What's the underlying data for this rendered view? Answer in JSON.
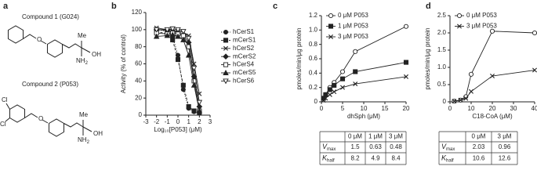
{
  "panel_labels": [
    "a",
    "b",
    "c",
    "d"
  ],
  "structures": [
    {
      "name": "Compound 1 (G024)",
      "labels": [
        "Me",
        "NH",
        "2",
        "OH"
      ]
    },
    {
      "name": "Compound 2 (P053)",
      "labels": [
        "Cl",
        "Cl",
        "Me",
        "NH",
        "2",
        "OH"
      ]
    }
  ],
  "chart_data": [
    {
      "type": "line",
      "ylabel": "Activity (% of control)",
      "xlabel": "Log₁₀[P053] (μM)",
      "x": [
        -2,
        -1,
        -0.5,
        0,
        0.5,
        1,
        1.5,
        2
      ],
      "xlim": [
        -3,
        3
      ],
      "xticks": [
        -3,
        -2,
        -1,
        0,
        1,
        2,
        3
      ],
      "ylim": [
        0,
        120
      ],
      "yticks": [
        0,
        20,
        40,
        60,
        80,
        100,
        120
      ],
      "legend": "outside right",
      "series": [
        {
          "name": "hCerS1",
          "color": "#222222",
          "marker": "circle-filled",
          "line_style": "dotted",
          "values": [
            100,
            98,
            92,
            70,
            30,
            8,
            4,
            3
          ]
        },
        {
          "name": "mCerS1",
          "color": "#222222",
          "marker": "square-filled",
          "line_style": "dashed",
          "values": [
            98,
            95,
            88,
            65,
            35,
            10,
            5,
            3
          ]
        },
        {
          "name": "hCerS2",
          "color": "#222222",
          "marker": "x",
          "line_style": "solid",
          "values": [
            102,
            100,
            100,
            98,
            97,
            93,
            60,
            25
          ]
        },
        {
          "name": "mCerS2",
          "color": "#222222",
          "marker": "diamond-filled",
          "line_style": "solid",
          "values": [
            100,
            99,
            98,
            97,
            94,
            85,
            45,
            10
          ]
        },
        {
          "name": "hCerS4",
          "color": "#222222",
          "marker": "square-open",
          "line_style": "solid",
          "values": [
            96,
            95,
            96,
            95,
            93,
            80,
            40,
            5
          ]
        },
        {
          "name": "mCerS5",
          "color": "#222222",
          "marker": "triangle-filled",
          "line_style": "solid",
          "values": [
            92,
            93,
            94,
            92,
            88,
            70,
            35,
            5
          ]
        },
        {
          "name": "hCerS6",
          "color": "#222222",
          "marker": "triangle-down-open",
          "line_style": "solid",
          "values": [
            100,
            100,
            101,
            100,
            98,
            90,
            55,
            15
          ]
        }
      ]
    },
    {
      "type": "line",
      "ylabel": "pmoles/min/μg protein",
      "xlabel": "dhSph (μM)",
      "x": [
        0.5,
        1,
        2,
        3,
        5,
        8,
        20
      ],
      "xlim": [
        0,
        20
      ],
      "xticks": [
        0,
        5,
        10,
        15,
        20
      ],
      "ylim": [
        0,
        1.2
      ],
      "yticks": [
        0,
        0.2,
        0.4,
        0.6,
        0.8,
        {
          "value": 1,
          "label": "1.0"
        },
        1.2
      ],
      "legend": "upper left",
      "series": [
        {
          "name": "0 μM P053",
          "color": "#222222",
          "marker": "circle-open",
          "line_style": "solid",
          "values": [
            0.05,
            0.1,
            0.2,
            0.27,
            0.42,
            0.7,
            1.05
          ]
        },
        {
          "name": "1 μM P053",
          "color": "#222222",
          "marker": "square-filled",
          "line_style": "solid",
          "values": [
            0.05,
            0.1,
            0.17,
            0.23,
            0.32,
            0.42,
            0.55
          ]
        },
        {
          "name": "3 μM P053",
          "color": "#222222",
          "marker": "x",
          "line_style": "solid",
          "values": [
            0.02,
            0.05,
            0.1,
            0.14,
            0.2,
            0.25,
            0.35
          ]
        }
      ]
    },
    {
      "type": "line",
      "ylabel": "pmoles/min/μg protein",
      "xlabel": "C18-CoA (μM)",
      "x": [
        2,
        5,
        7.5,
        10,
        20,
        40
      ],
      "xlim": [
        0,
        40
      ],
      "xticks": [
        0,
        10,
        20,
        30,
        40
      ],
      "ylim": [
        0,
        2.5
      ],
      "yticks": [
        0,
        0.5,
        {
          "value": 1,
          "label": "1.0"
        },
        1.5,
        {
          "value": 2,
          "label": "2.0"
        },
        2.5
      ],
      "legend": "upper left",
      "series": [
        {
          "name": "0 μM P053",
          "color": "#222222",
          "marker": "circle-open",
          "line_style": "solid",
          "values": [
            0.02,
            0.05,
            0.15,
            0.8,
            2.05,
            2.0
          ]
        },
        {
          "name": "3 μM P053",
          "color": "#222222",
          "marker": "x",
          "line_style": "solid",
          "values": [
            0.02,
            0.05,
            0.1,
            0.3,
            0.75,
            0.92
          ]
        }
      ]
    }
  ],
  "tables": [
    {
      "columns": [
        "0 μM",
        "1 μM",
        "3 μM"
      ],
      "rows": [
        {
          "symbol": "V",
          "sub": "max",
          "cells": [
            "1.5",
            "0.63",
            "0.48"
          ]
        },
        {
          "symbol": "K",
          "sub": "half",
          "cells": [
            "8.2",
            "4.9",
            "8.4"
          ]
        }
      ]
    },
    {
      "columns": [
        "0 μM",
        "3 μM"
      ],
      "rows": [
        {
          "symbol": "V",
          "sub": "max",
          "cells": [
            "2.03",
            "0.96"
          ]
        },
        {
          "symbol": "K",
          "sub": "half",
          "cells": [
            "10.6",
            "12.6"
          ]
        }
      ]
    }
  ]
}
